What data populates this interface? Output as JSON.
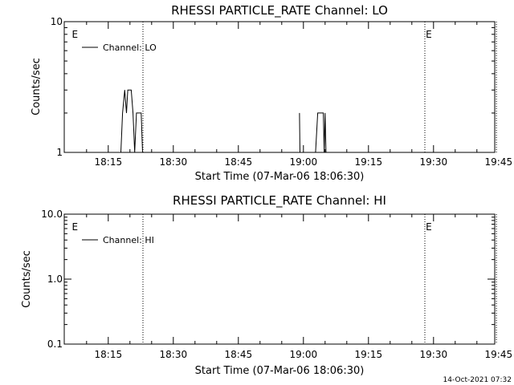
{
  "footer_timestamp": "14-Oct-2021 07:32",
  "chart_data": [
    {
      "type": "line",
      "title": "RHESSI  PARTICLE_RATE  Channel: LO",
      "xlabel": "Start Time (07-Mar-06 18:06:30)",
      "ylabel": "Counts/sec",
      "y_scale": "log",
      "ylim": [
        1,
        10
      ],
      "y_ticks": [
        {
          "value": 1,
          "label": "1"
        },
        {
          "value": 10,
          "label": "10"
        }
      ],
      "xlim_minutes_after_1800": [
        6.5,
        48.5
      ],
      "x_ticks": [
        {
          "value": 15,
          "label": "18:15"
        },
        {
          "value": 30,
          "label": "18:30"
        },
        {
          "value": 45,
          "label": "18:45"
        },
        {
          "value": 60,
          "label": "19:00"
        },
        {
          "value": 75,
          "label": "19:15"
        },
        {
          "value": 90,
          "label": "19:30"
        },
        {
          "value": 105,
          "label": "19:45"
        }
      ],
      "event_lines": [
        23,
        88,
        104.5
      ],
      "eclipse_markers": [
        {
          "label": "E",
          "x": 6.6
        },
        {
          "label": "E",
          "x": 88.2
        }
      ],
      "legend": {
        "position": "top-left",
        "entries": [
          "Channel: LO"
        ]
      },
      "series": [
        {
          "name": "Channel: LO",
          "points": [
            [
              17.9,
              1
            ],
            [
              18.3,
              2
            ],
            [
              18.8,
              3
            ],
            [
              19.2,
              2
            ],
            [
              19.5,
              3
            ],
            [
              20.3,
              3
            ],
            [
              20.7,
              2
            ],
            [
              21.1,
              1
            ],
            [
              21.5,
              2
            ],
            [
              22.6,
              2
            ],
            [
              22.9,
              1
            ],
            [
              23.2,
              1
            ]
          ]
        },
        {
          "name": "Channel: LO",
          "points": [
            [
              59.1,
              2
            ],
            [
              59.2,
              1
            ],
            [
              60.1,
              1
            ],
            [
              62.8,
              1
            ],
            [
              63.3,
              2
            ],
            [
              64.6,
              2
            ],
            [
              64.8,
              1
            ],
            [
              65.0,
              2
            ],
            [
              65.2,
              1
            ]
          ]
        }
      ]
    },
    {
      "type": "line",
      "title": "RHESSI  PARTICLE_RATE  Channel: HI",
      "xlabel": "Start Time (07-Mar-06 18:06:30)",
      "ylabel": "Counts/sec",
      "y_scale": "log",
      "ylim": [
        0.1,
        10
      ],
      "y_ticks": [
        {
          "value": 0.1,
          "label": "0.1"
        },
        {
          "value": 1,
          "label": "1.0"
        },
        {
          "value": 10,
          "label": "10.0"
        }
      ],
      "xlim_minutes_after_1800": [
        6.5,
        48.5
      ],
      "x_ticks": [
        {
          "value": 15,
          "label": "18:15"
        },
        {
          "value": 30,
          "label": "18:30"
        },
        {
          "value": 45,
          "label": "18:45"
        },
        {
          "value": 60,
          "label": "19:00"
        },
        {
          "value": 75,
          "label": "19:15"
        },
        {
          "value": 90,
          "label": "19:30"
        },
        {
          "value": 105,
          "label": "19:45"
        }
      ],
      "event_lines": [
        23,
        88,
        104.5
      ],
      "eclipse_markers": [
        {
          "label": "E",
          "x": 6.6
        },
        {
          "label": "E",
          "x": 88.2
        }
      ],
      "legend": {
        "position": "top-left",
        "entries": [
          "Channel: HI"
        ]
      },
      "series": [
        {
          "name": "Channel: HI",
          "points": []
        }
      ]
    }
  ]
}
